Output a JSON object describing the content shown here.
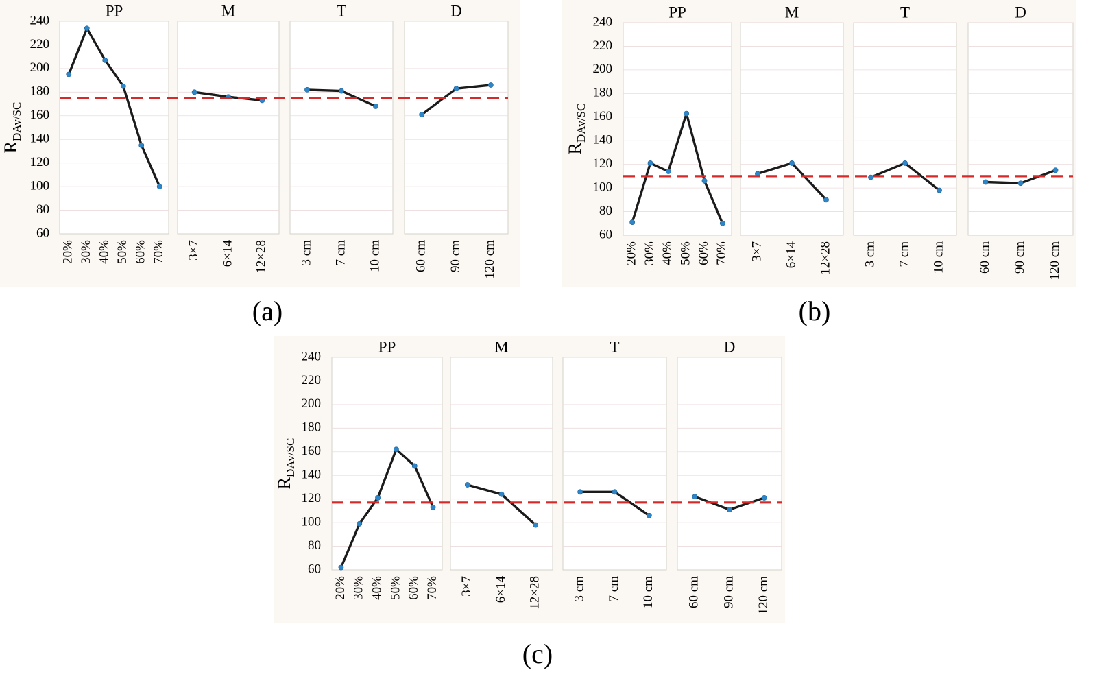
{
  "figure": {
    "background": "#fbf8f4",
    "series_color": "#1b1b1b",
    "point_color": "#2e86c8",
    "reference_line_color": "#d42a2a"
  },
  "chart_data": [
    {
      "id": "a",
      "type": "line",
      "caption": "(a)",
      "ylabel": "R",
      "ylabel_subscript": "DAv/SC",
      "ylim": [
        60,
        240
      ],
      "yticks": [
        60,
        80,
        100,
        120,
        140,
        160,
        180,
        200,
        220,
        240
      ],
      "reference_line": 175,
      "grid": true,
      "panels": [
        {
          "title": "PP",
          "categories": [
            "20%",
            "30%",
            "40%",
            "50%",
            "60%",
            "70%"
          ],
          "values": [
            195,
            234,
            207,
            185,
            135,
            100
          ]
        },
        {
          "title": "M",
          "categories": [
            "3×7",
            "6×14",
            "12×28"
          ],
          "values": [
            180,
            176,
            173
          ]
        },
        {
          "title": "T",
          "categories": [
            "3 cm",
            "7 cm",
            "10 cm"
          ],
          "values": [
            182,
            181,
            168
          ]
        },
        {
          "title": "D",
          "categories": [
            "60 cm",
            "90 cm",
            "120 cm"
          ],
          "values": [
            161,
            183,
            186
          ]
        }
      ]
    },
    {
      "id": "b",
      "type": "line",
      "caption": "(b)",
      "ylabel": "R",
      "ylabel_subscript": "DAv/SC",
      "ylim": [
        60,
        240
      ],
      "yticks": [
        60,
        80,
        100,
        120,
        140,
        160,
        180,
        200,
        220,
        240
      ],
      "reference_line": 110,
      "grid": true,
      "panels": [
        {
          "title": "PP",
          "categories": [
            "20%",
            "30%",
            "40%",
            "50%",
            "60%",
            "70%"
          ],
          "values": [
            71,
            121,
            114,
            163,
            106,
            70
          ]
        },
        {
          "title": "M",
          "categories": [
            "3×7",
            "6×14",
            "12×28"
          ],
          "values": [
            112,
            121,
            90
          ]
        },
        {
          "title": "T",
          "categories": [
            "3 cm",
            "7 cm",
            "10 cm"
          ],
          "values": [
            109,
            121,
            98
          ]
        },
        {
          "title": "D",
          "categories": [
            "60 cm",
            "90 cm",
            "120 cm"
          ],
          "values": [
            105,
            104,
            115
          ]
        }
      ]
    },
    {
      "id": "c",
      "type": "line",
      "caption": "(c)",
      "ylabel": "R",
      "ylabel_subscript": "DAv/SC",
      "ylim": [
        60,
        240
      ],
      "yticks": [
        60,
        80,
        100,
        120,
        140,
        160,
        180,
        200,
        220,
        240
      ],
      "reference_line": 117,
      "grid": true,
      "panels": [
        {
          "title": "PP",
          "categories": [
            "20%",
            "30%",
            "40%",
            "50%",
            "60%",
            "70%"
          ],
          "values": [
            62,
            99,
            121,
            162,
            148,
            113
          ]
        },
        {
          "title": "M",
          "categories": [
            "3×7",
            "6×14",
            "12×28"
          ],
          "values": [
            132,
            124,
            98
          ]
        },
        {
          "title": "T",
          "categories": [
            "3 cm",
            "7 cm",
            "10 cm"
          ],
          "values": [
            126,
            126,
            106
          ]
        },
        {
          "title": "D",
          "categories": [
            "60 cm",
            "90 cm",
            "120 cm"
          ],
          "values": [
            122,
            111,
            121
          ]
        }
      ]
    }
  ]
}
